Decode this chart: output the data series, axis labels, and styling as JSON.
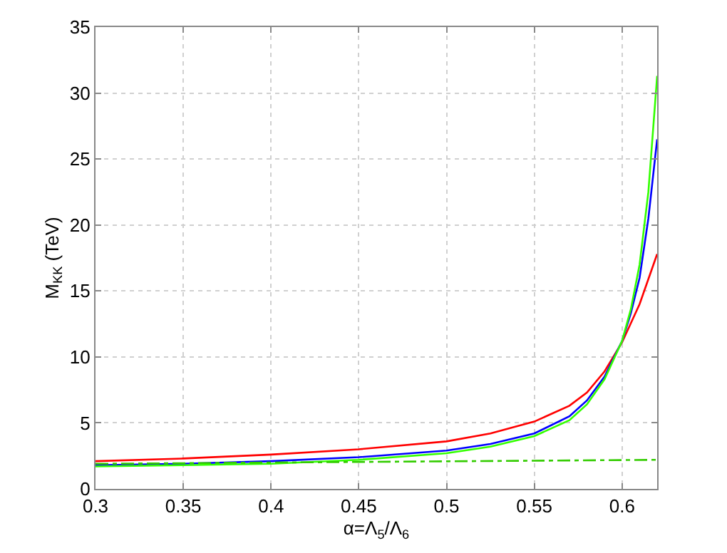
{
  "chart_data": {
    "type": "line",
    "xlabel": "α=Λ$_{5}$/Λ$_{6}$",
    "ylabel": "M$_{KK}$ (TeV)",
    "xlim": [
      0.3,
      0.62
    ],
    "xticks": [
      0.3,
      0.35,
      0.4,
      0.45,
      0.5,
      0.55,
      0.6
    ],
    "ylim": [
      0,
      35
    ],
    "yticks": [
      0,
      5,
      10,
      15,
      20,
      25,
      30,
      35
    ],
    "grid": true,
    "series": [
      {
        "color": "#ff0000",
        "x": [
          0.3,
          0.35,
          0.4,
          0.45,
          0.5,
          0.525,
          0.55,
          0.57,
          0.58,
          0.59,
          0.6,
          0.61,
          0.62
        ],
        "values": [
          2.1,
          2.3,
          2.6,
          3.0,
          3.6,
          4.2,
          5.1,
          6.3,
          7.3,
          8.9,
          11.1,
          14,
          17.8
        ]
      },
      {
        "color": "#0000ff",
        "x": [
          0.3,
          0.35,
          0.4,
          0.45,
          0.5,
          0.525,
          0.55,
          0.57,
          0.58,
          0.59,
          0.6,
          0.605,
          0.61,
          0.615,
          0.62
        ],
        "values": [
          1.8,
          1.9,
          2.1,
          2.4,
          2.9,
          3.4,
          4.2,
          5.5,
          6.7,
          8.5,
          11.2,
          13.3,
          16,
          20.5,
          26.5
        ]
      },
      {
        "color": "#33ff00",
        "x": [
          0.3,
          0.35,
          0.4,
          0.45,
          0.5,
          0.525,
          0.55,
          0.57,
          0.58,
          0.59,
          0.6,
          0.605,
          0.61,
          0.615,
          0.62
        ],
        "values": [
          1.7,
          1.8,
          1.9,
          2.2,
          2.7,
          3.2,
          4.0,
          5.2,
          6.4,
          8.3,
          11.2,
          13.6,
          17,
          22.5,
          31.3
        ]
      },
      {
        "color": "#33cc00",
        "line_style": "dashdot",
        "x": [
          0.3,
          0.62
        ],
        "values": [
          1.9,
          2.2
        ]
      }
    ]
  }
}
